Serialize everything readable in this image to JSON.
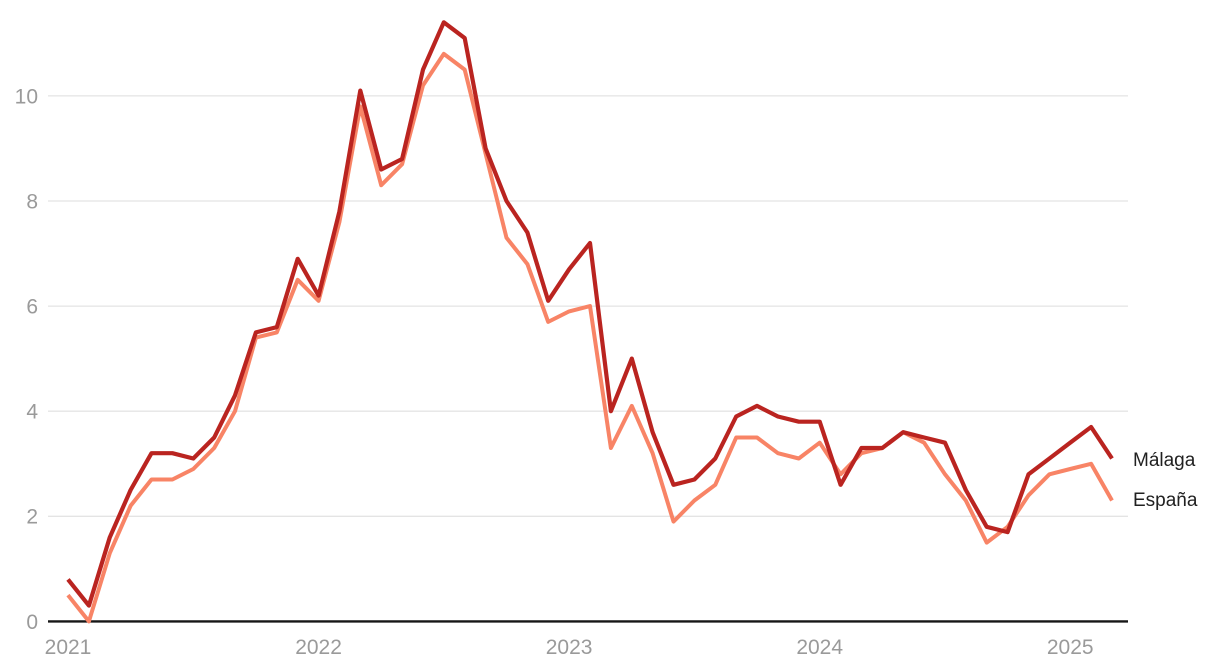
{
  "chart_data": {
    "type": "line",
    "title": "",
    "xlabel": "",
    "ylabel": "",
    "grid": "horizontal",
    "legend_position": "right-end-labels",
    "ylim": [
      0,
      11.7
    ],
    "y_ticks": [
      0,
      2,
      4,
      6,
      8,
      10
    ],
    "x_tick_labels": [
      "2021",
      "2022",
      "2023",
      "2024",
      "2025"
    ],
    "months": [
      "2021-01",
      "2021-02",
      "2021-03",
      "2021-04",
      "2021-05",
      "2021-06",
      "2021-07",
      "2021-08",
      "2021-09",
      "2021-10",
      "2021-11",
      "2021-12",
      "2022-01",
      "2022-02",
      "2022-03",
      "2022-04",
      "2022-05",
      "2022-06",
      "2022-07",
      "2022-08",
      "2022-09",
      "2022-10",
      "2022-11",
      "2022-12",
      "2023-01",
      "2023-02",
      "2023-03",
      "2023-04",
      "2023-05",
      "2023-06",
      "2023-07",
      "2023-08",
      "2023-09",
      "2023-10",
      "2023-11",
      "2023-12",
      "2024-01",
      "2024-02",
      "2024-03",
      "2024-04",
      "2024-05",
      "2024-06",
      "2024-07",
      "2024-08",
      "2024-09",
      "2024-10",
      "2024-11",
      "2024-12",
      "2025-01",
      "2025-02",
      "2025-03"
    ],
    "series": [
      {
        "name": "Málaga",
        "color": "#ba2420",
        "values": [
          0.8,
          0.3,
          1.6,
          2.5,
          3.2,
          3.2,
          3.1,
          3.5,
          4.3,
          5.5,
          5.6,
          6.9,
          6.2,
          7.8,
          10.1,
          8.6,
          8.8,
          10.5,
          11.4,
          11.1,
          9.0,
          8.0,
          7.4,
          6.1,
          6.7,
          7.2,
          4.0,
          5.0,
          3.6,
          2.6,
          2.7,
          3.1,
          3.9,
          4.1,
          3.9,
          3.8,
          3.8,
          2.6,
          3.3,
          3.3,
          3.6,
          3.5,
          3.4,
          2.5,
          1.8,
          1.7,
          2.8,
          3.1,
          3.4,
          3.7,
          3.1
        ]
      },
      {
        "name": "España",
        "color": "#f88466",
        "values": [
          0.5,
          0.0,
          1.3,
          2.2,
          2.7,
          2.7,
          2.9,
          3.3,
          4.0,
          5.4,
          5.5,
          6.5,
          6.1,
          7.6,
          9.8,
          8.3,
          8.7,
          10.2,
          10.8,
          10.5,
          8.9,
          7.3,
          6.8,
          5.7,
          5.9,
          6.0,
          3.3,
          4.1,
          3.2,
          1.9,
          2.3,
          2.6,
          3.5,
          3.5,
          3.2,
          3.1,
          3.4,
          2.8,
          3.2,
          3.3,
          3.6,
          3.4,
          2.8,
          2.3,
          1.5,
          1.8,
          2.4,
          2.8,
          2.9,
          3.0,
          2.3
        ]
      }
    ]
  },
  "styles": {
    "grid_color": "#e4e4e4",
    "axis_color": "#161616",
    "tick_label_color": "#9a9a9a",
    "series_label_color": "#212121",
    "background": "#ffffff"
  }
}
